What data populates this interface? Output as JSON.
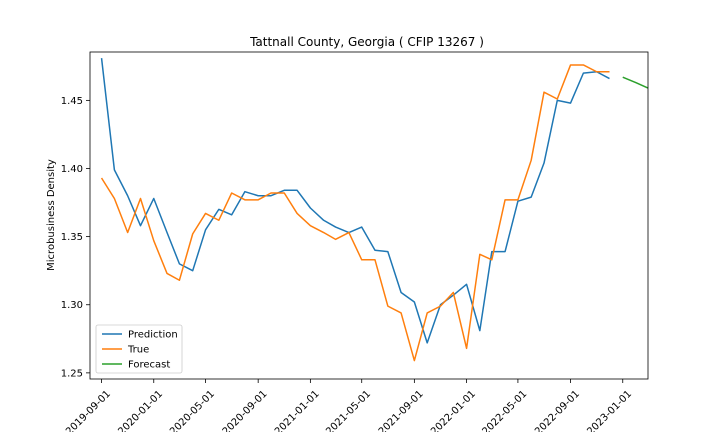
{
  "chart_data": {
    "type": "line",
    "title": "Tattnall County, Georgia ( CFIP 13267 )",
    "xlabel": "",
    "ylabel": "Microbusiness Density",
    "xlim": [
      "2019-08-05",
      "2023-03-01"
    ],
    "ylim": [
      1.2455,
      1.4855
    ],
    "x_ticks": [
      "2019-09-01",
      "2020-01-01",
      "2020-05-01",
      "2020-09-01",
      "2021-01-01",
      "2021-05-01",
      "2021-09-01",
      "2022-01-01",
      "2022-05-01",
      "2022-09-01",
      "2023-01-01"
    ],
    "y_ticks": [
      1.25,
      1.3,
      1.35,
      1.4,
      1.45
    ],
    "y_tick_labels": [
      "1.25",
      "1.30",
      "1.35",
      "1.40",
      "1.45"
    ],
    "grid": false,
    "legend_position": "lower-left",
    "series": [
      {
        "name": "Prediction",
        "color": "#1f77b4",
        "x": [
          "2019-09-01",
          "2019-10-01",
          "2019-11-01",
          "2019-12-01",
          "2020-01-01",
          "2020-02-01",
          "2020-03-01",
          "2020-04-01",
          "2020-05-01",
          "2020-06-01",
          "2020-07-01",
          "2020-08-01",
          "2020-09-01",
          "2020-10-01",
          "2020-11-01",
          "2020-12-01",
          "2021-01-01",
          "2021-02-01",
          "2021-03-01",
          "2021-04-01",
          "2021-05-01",
          "2021-06-01",
          "2021-07-01",
          "2021-08-01",
          "2021-09-01",
          "2021-10-01",
          "2021-11-01",
          "2021-12-01",
          "2022-01-01",
          "2022-02-01",
          "2022-03-01",
          "2022-04-01",
          "2022-05-01",
          "2022-06-01",
          "2022-07-01",
          "2022-08-01",
          "2022-09-01",
          "2022-10-01",
          "2022-11-01",
          "2022-12-01"
        ],
        "values": [
          1.481,
          1.399,
          1.38,
          1.358,
          1.378,
          1.353,
          1.33,
          1.325,
          1.355,
          1.37,
          1.366,
          1.383,
          1.38,
          1.38,
          1.384,
          1.384,
          1.371,
          1.362,
          1.357,
          1.353,
          1.357,
          1.34,
          1.339,
          1.309,
          1.302,
          1.272,
          1.3,
          1.307,
          1.315,
          1.281,
          1.339,
          1.339,
          1.376,
          1.379,
          1.404,
          1.45,
          1.448,
          1.47,
          1.471,
          1.466
        ]
      },
      {
        "name": "True",
        "color": "#ff7f0e",
        "x": [
          "2019-09-01",
          "2019-10-01",
          "2019-11-01",
          "2019-12-01",
          "2020-01-01",
          "2020-02-01",
          "2020-03-01",
          "2020-04-01",
          "2020-05-01",
          "2020-06-01",
          "2020-07-01",
          "2020-08-01",
          "2020-09-01",
          "2020-10-01",
          "2020-11-01",
          "2020-12-01",
          "2021-01-01",
          "2021-02-01",
          "2021-03-01",
          "2021-04-01",
          "2021-05-01",
          "2021-06-01",
          "2021-07-01",
          "2021-08-01",
          "2021-09-01",
          "2021-10-01",
          "2021-11-01",
          "2021-12-01",
          "2022-01-01",
          "2022-02-01",
          "2022-03-01",
          "2022-04-01",
          "2022-05-01",
          "2022-06-01",
          "2022-07-01",
          "2022-08-01",
          "2022-09-01",
          "2022-10-01",
          "2022-11-01",
          "2022-12-01"
        ],
        "values": [
          1.393,
          1.378,
          1.353,
          1.378,
          1.347,
          1.323,
          1.318,
          1.352,
          1.367,
          1.362,
          1.382,
          1.377,
          1.377,
          1.382,
          1.382,
          1.367,
          1.358,
          1.353,
          1.348,
          1.353,
          1.333,
          1.333,
          1.299,
          1.294,
          1.259,
          1.294,
          1.299,
          1.309,
          1.268,
          1.337,
          1.333,
          1.377,
          1.377,
          1.406,
          1.456,
          1.451,
          1.476,
          1.476,
          1.471,
          1.471
        ]
      },
      {
        "name": "Forecast",
        "color": "#2ca02c",
        "x": [
          "2023-01-01",
          "2023-02-01",
          "2023-03-01"
        ],
        "values": [
          1.467,
          1.463,
          1.459
        ]
      }
    ]
  }
}
